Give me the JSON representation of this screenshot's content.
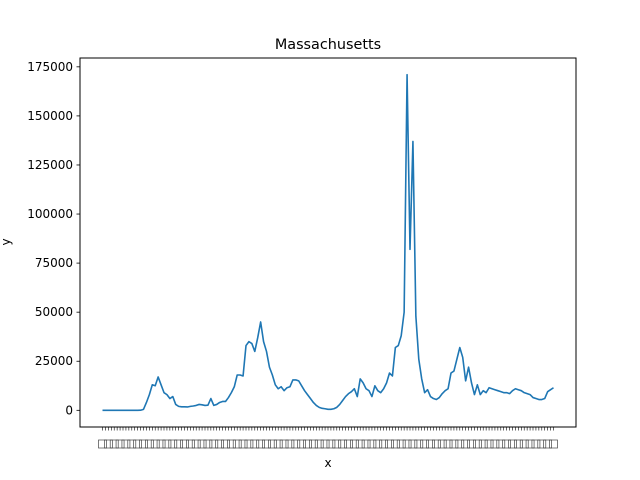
{
  "chart_data": {
    "type": "line",
    "title": "Massachusetts",
    "xlabel": "x",
    "ylabel": "y",
    "ylim": [
      -8500,
      179500
    ],
    "yticks": [
      0,
      25000,
      50000,
      75000,
      100000,
      125000,
      150000,
      175000
    ],
    "ytick_labels": [
      "0",
      "25000",
      "50000",
      "75000",
      "100000",
      "125000",
      "150000",
      "175000"
    ],
    "x_tick_labels_legible": false,
    "grid": false,
    "legend": "none",
    "line_color": "#1f77b4",
    "series": [
      {
        "values": [
          0,
          0,
          0,
          0,
          0,
          0,
          0,
          0,
          0,
          0,
          0,
          0,
          0,
          50,
          500,
          4000,
          8000,
          13000,
          12500,
          17000,
          13000,
          9000,
          8000,
          6000,
          7000,
          3000,
          2000,
          1800,
          1800,
          1700,
          2000,
          2200,
          2500,
          3000,
          2800,
          2500,
          2600,
          6000,
          2500,
          3000,
          4000,
          4500,
          4500,
          6500,
          9000,
          12000,
          18000,
          18000,
          17500,
          33000,
          35000,
          34000,
          30000,
          37000,
          45000,
          35000,
          30000,
          22000,
          18000,
          13000,
          11000,
          12000,
          10000,
          11500,
          12000,
          15500,
          15500,
          15000,
          12500,
          10000,
          8000,
          6000,
          4000,
          2500,
          1500,
          1000,
          800,
          500,
          500,
          800,
          1500,
          3000,
          5000,
          7000,
          8500,
          9500,
          11000,
          7000,
          16000,
          14000,
          11000,
          10000,
          7000,
          12500,
          10000,
          9000,
          11000,
          14000,
          19000,
          17500,
          32000,
          33000,
          38000,
          50000,
          171000,
          82000,
          137000,
          48000,
          26000,
          16000,
          9000,
          10500,
          7000,
          6000,
          5500,
          6500,
          8500,
          10000,
          11000,
          19000,
          20000,
          26000,
          32000,
          27000,
          15000,
          22000,
          14000,
          8000,
          13000,
          8000,
          10000,
          9000,
          11500,
          11000,
          10500,
          10000,
          9500,
          9000,
          9000,
          8500,
          10000,
          11000,
          10500,
          10000,
          9000,
          8500,
          8000,
          6500,
          6000,
          5500,
          5500,
          6000,
          9500,
          10500,
          11500
        ]
      }
    ]
  }
}
